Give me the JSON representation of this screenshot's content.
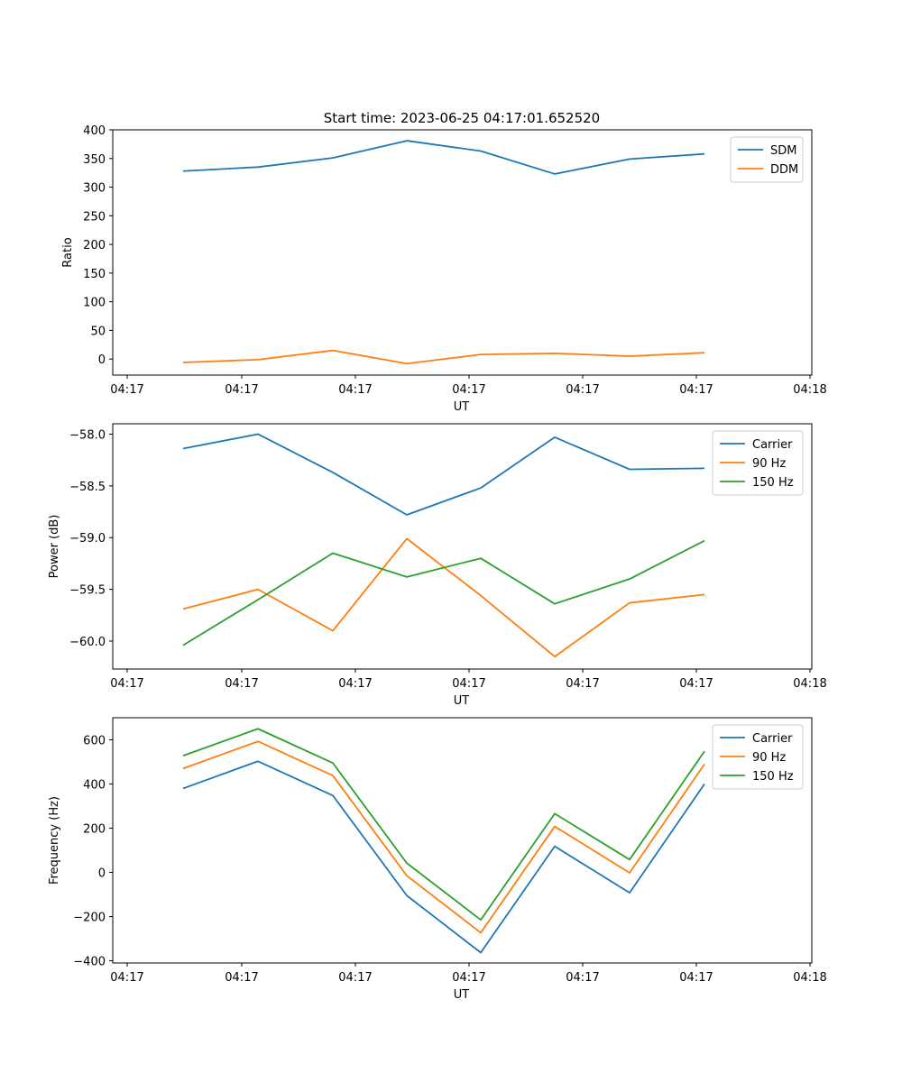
{
  "figure": {
    "title": "Start time: 2023-06-25 04:17:01.652520"
  },
  "chart_data": [
    {
      "type": "line",
      "xlabel": "UT",
      "ylabel": "Ratio",
      "x_tick_labels": [
        "04:17",
        "04:17",
        "04:17",
        "04:17",
        "04:17",
        "04:17",
        "04:18"
      ],
      "ylim": [
        -28,
        400
      ],
      "yticks": [
        0,
        50,
        100,
        150,
        200,
        250,
        300,
        350,
        400
      ],
      "y_tick_labels": [
        "0",
        "50",
        "100",
        "150",
        "200",
        "250",
        "300",
        "350",
        "400"
      ],
      "legend_position": "top-right",
      "series": [
        {
          "name": "SDM",
          "color": "#1f77b4",
          "values": [
            328,
            335,
            351,
            381,
            363,
            323,
            349,
            358
          ]
        },
        {
          "name": "DDM",
          "color": "#ff7f0e",
          "values": [
            -6,
            -1,
            15,
            -8,
            8,
            10,
            5,
            11
          ]
        }
      ]
    },
    {
      "type": "line",
      "xlabel": "UT",
      "ylabel": "Power (dB)",
      "x_tick_labels": [
        "04:17",
        "04:17",
        "04:17",
        "04:17",
        "04:17",
        "04:17",
        "04:18"
      ],
      "ylim": [
        -60.27,
        -57.9
      ],
      "yticks": [
        -60.0,
        -59.5,
        -59.0,
        -58.5,
        -58.0
      ],
      "y_tick_labels": [
        "−60.0",
        "−59.5",
        "−59.0",
        "−58.5",
        "−58.0"
      ],
      "legend_position": "top-right",
      "series": [
        {
          "name": "Carrier",
          "color": "#1f77b4",
          "values": [
            -58.14,
            -58.0,
            -58.37,
            -58.78,
            -58.52,
            -58.03,
            -58.34,
            -58.33
          ]
        },
        {
          "name": "90 Hz",
          "color": "#ff7f0e",
          "values": [
            -59.69,
            -59.5,
            -59.9,
            -59.01,
            -59.56,
            -60.15,
            -59.63,
            -59.55
          ]
        },
        {
          "name": "150 Hz",
          "color": "#2ca02c",
          "values": [
            -60.04,
            -59.6,
            -59.15,
            -59.38,
            -59.2,
            -59.64,
            -59.4,
            -59.03
          ]
        }
      ]
    },
    {
      "type": "line",
      "xlabel": "UT",
      "ylabel": "Frequency (Hz)",
      "x_tick_labels": [
        "04:17",
        "04:17",
        "04:17",
        "04:17",
        "04:17",
        "04:17",
        "04:18"
      ],
      "ylim": [
        -410,
        700
      ],
      "yticks": [
        -400,
        -200,
        0,
        200,
        400,
        600
      ],
      "y_tick_labels": [
        "−400",
        "−200",
        "0",
        "200",
        "400",
        "600"
      ],
      "legend_position": "top-right",
      "series": [
        {
          "name": "Carrier",
          "color": "#1f77b4",
          "values": [
            380,
            503,
            348,
            -105,
            -363,
            118,
            -92,
            400
          ]
        },
        {
          "name": "90 Hz",
          "color": "#ff7f0e",
          "values": [
            470,
            593,
            438,
            -15,
            -273,
            208,
            -2,
            490
          ]
        },
        {
          "name": "150 Hz",
          "color": "#2ca02c",
          "values": [
            528,
            650,
            495,
            42,
            -215,
            266,
            58,
            548
          ]
        }
      ]
    }
  ]
}
